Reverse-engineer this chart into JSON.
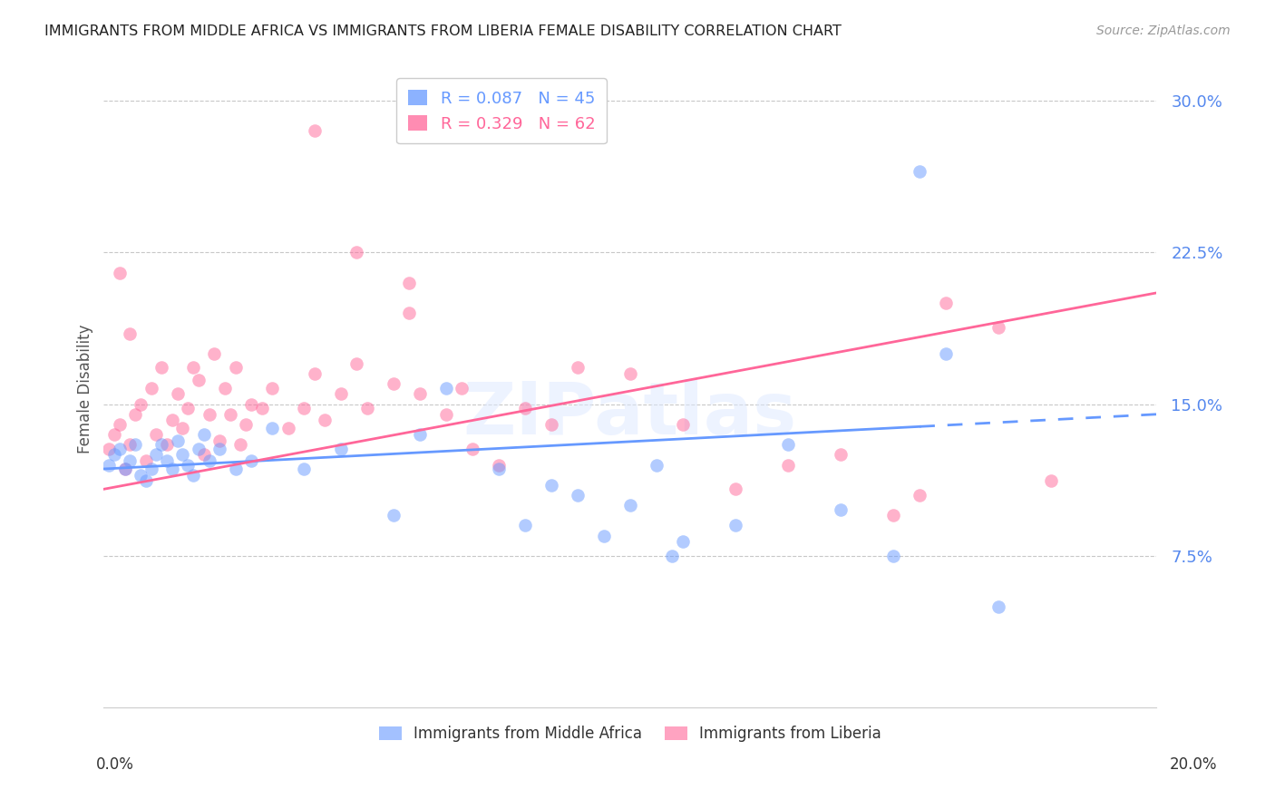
{
  "title": "IMMIGRANTS FROM MIDDLE AFRICA VS IMMIGRANTS FROM LIBERIA FEMALE DISABILITY CORRELATION CHART",
  "source": "Source: ZipAtlas.com",
  "ylabel": "Female Disability",
  "series1_label": "Immigrants from Middle Africa",
  "series2_label": "Immigrants from Liberia",
  "series1_color": "#6699ff",
  "series2_color": "#ff6699",
  "background_color": "#ffffff",
  "grid_color": "#c8c8c8",
  "title_color": "#222222",
  "ytick_color": "#5588ee",
  "xmin": 0.0,
  "xmax": 0.2,
  "ymin": 0.0,
  "ymax": 0.315,
  "ytick_vals": [
    0.075,
    0.15,
    0.225,
    0.3
  ],
  "ytick_labels": [
    "7.5%",
    "15.0%",
    "22.5%",
    "30.0%"
  ],
  "trend1_x0": 0.0,
  "trend1_y0": 0.118,
  "trend1_x1": 0.2,
  "trend1_y1": 0.145,
  "trend1_solid_end": 0.155,
  "trend2_x0": 0.0,
  "trend2_y0": 0.108,
  "trend2_x1": 0.2,
  "trend2_y1": 0.205,
  "series1_x": [
    0.001,
    0.002,
    0.003,
    0.004,
    0.005,
    0.006,
    0.007,
    0.008,
    0.009,
    0.01,
    0.011,
    0.012,
    0.013,
    0.014,
    0.015,
    0.016,
    0.017,
    0.018,
    0.019,
    0.02,
    0.022,
    0.025,
    0.028,
    0.032,
    0.038,
    0.045,
    0.055,
    0.06,
    0.065,
    0.075,
    0.08,
    0.09,
    0.1,
    0.11,
    0.12,
    0.14,
    0.15,
    0.155,
    0.16,
    0.17,
    0.105,
    0.108,
    0.085,
    0.095,
    0.13
  ],
  "series1_y": [
    0.12,
    0.125,
    0.128,
    0.118,
    0.122,
    0.13,
    0.115,
    0.112,
    0.118,
    0.125,
    0.13,
    0.122,
    0.118,
    0.132,
    0.125,
    0.12,
    0.115,
    0.128,
    0.135,
    0.122,
    0.128,
    0.118,
    0.122,
    0.138,
    0.118,
    0.128,
    0.095,
    0.135,
    0.158,
    0.118,
    0.09,
    0.105,
    0.1,
    0.082,
    0.09,
    0.098,
    0.075,
    0.265,
    0.175,
    0.05,
    0.12,
    0.075,
    0.11,
    0.085,
    0.13
  ],
  "series2_x": [
    0.001,
    0.002,
    0.003,
    0.004,
    0.005,
    0.006,
    0.007,
    0.008,
    0.009,
    0.01,
    0.011,
    0.012,
    0.013,
    0.014,
    0.015,
    0.016,
    0.017,
    0.018,
    0.019,
    0.02,
    0.021,
    0.022,
    0.023,
    0.024,
    0.025,
    0.026,
    0.027,
    0.028,
    0.03,
    0.032,
    0.035,
    0.038,
    0.04,
    0.042,
    0.045,
    0.048,
    0.05,
    0.055,
    0.058,
    0.06,
    0.065,
    0.068,
    0.07,
    0.075,
    0.08,
    0.085,
    0.09,
    0.1,
    0.11,
    0.12,
    0.13,
    0.14,
    0.15,
    0.155,
    0.16,
    0.17,
    0.18,
    0.04,
    0.048,
    0.058,
    0.003,
    0.005
  ],
  "series2_y": [
    0.128,
    0.135,
    0.14,
    0.118,
    0.13,
    0.145,
    0.15,
    0.122,
    0.158,
    0.135,
    0.168,
    0.13,
    0.142,
    0.155,
    0.138,
    0.148,
    0.168,
    0.162,
    0.125,
    0.145,
    0.175,
    0.132,
    0.158,
    0.145,
    0.168,
    0.13,
    0.14,
    0.15,
    0.148,
    0.158,
    0.138,
    0.148,
    0.165,
    0.142,
    0.155,
    0.17,
    0.148,
    0.16,
    0.195,
    0.155,
    0.145,
    0.158,
    0.128,
    0.12,
    0.148,
    0.14,
    0.168,
    0.165,
    0.14,
    0.108,
    0.12,
    0.125,
    0.095,
    0.105,
    0.2,
    0.188,
    0.112,
    0.285,
    0.225,
    0.21,
    0.215,
    0.185
  ]
}
